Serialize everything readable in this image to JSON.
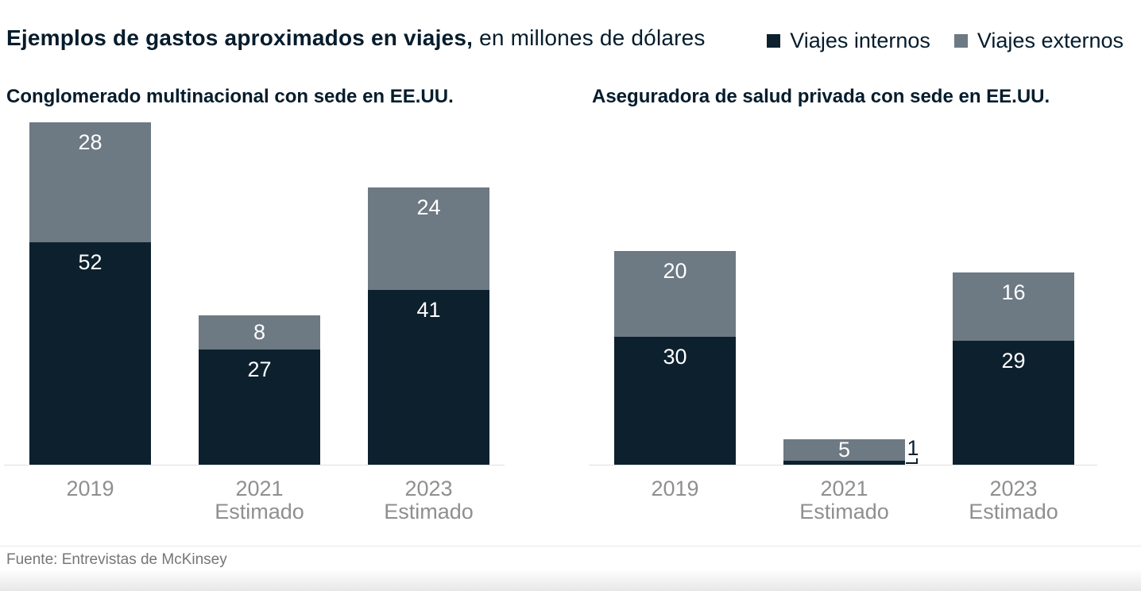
{
  "title": {
    "bold": "Ejemplos de gastos aproximados en viajes,",
    "regular": " en millones de dólares"
  },
  "legend": {
    "items": [
      {
        "label": "Viajes internos",
        "color": "#0d202e"
      },
      {
        "label": "Viajes externos",
        "color": "#6d7983"
      }
    ]
  },
  "colors": {
    "internos": "#0d202e",
    "externos": "#6d7983",
    "axis_line": "#e0e0e0",
    "tick_text": "#8f8f8f",
    "heading_text": "#051c2c",
    "source_text": "#767676",
    "bar_label_text": "#ffffff"
  },
  "footer": {
    "source": "Fuente: Entrevistas de McKinsey"
  },
  "chart_data": [
    {
      "type": "bar",
      "stacked": true,
      "title": "Conglomerado multinacional con sede en EE.UU.",
      "categories": [
        [
          "2019"
        ],
        [
          "2021",
          "Estimado"
        ],
        [
          "2023",
          "Estimado"
        ]
      ],
      "series": [
        {
          "name": "Viajes internos",
          "color": "#0d202e",
          "values": [
            52,
            27,
            41
          ]
        },
        {
          "name": "Viajes externos",
          "color": "#6d7983",
          "values": [
            28,
            8,
            24
          ]
        }
      ],
      "totals": [
        80,
        35,
        65
      ],
      "unit": "millones de dólares",
      "ylim": [
        0,
        80
      ],
      "grid": false,
      "value_labels": "inside-top"
    },
    {
      "type": "bar",
      "stacked": true,
      "title": "Aseguradora de salud privada con sede en EE.UU.",
      "categories": [
        [
          "2019"
        ],
        [
          "2021",
          "Estimado"
        ],
        [
          "2023",
          "Estimado"
        ]
      ],
      "series": [
        {
          "name": "Viajes internos",
          "color": "#0d202e",
          "values": [
            30,
            1,
            29
          ]
        },
        {
          "name": "Viajes externos",
          "color": "#6d7983",
          "values": [
            20,
            5,
            16
          ]
        }
      ],
      "totals": [
        50,
        6,
        45
      ],
      "unit": "millones de dólares",
      "ylim": [
        0,
        80
      ],
      "grid": false,
      "value_labels": "inside-top",
      "callout_note": "El valor 1 de Viajes internos 2021 se rotula fuera de la barra"
    }
  ]
}
